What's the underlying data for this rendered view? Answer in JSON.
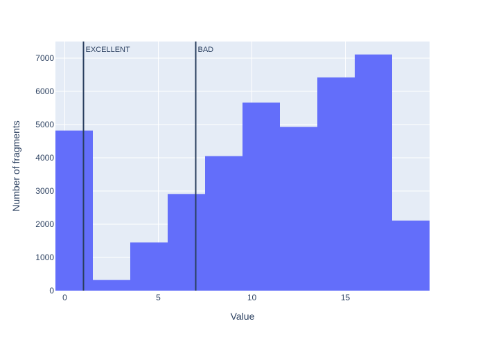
{
  "chart_data": {
    "type": "bar",
    "bins": [
      {
        "x0": -0.5,
        "x1": 1.5,
        "value": 4820
      },
      {
        "x0": 1.5,
        "x1": 3.5,
        "value": 320
      },
      {
        "x0": 3.5,
        "x1": 5.5,
        "value": 1450
      },
      {
        "x0": 5.5,
        "x1": 7.5,
        "value": 2910
      },
      {
        "x0": 7.5,
        "x1": 9.5,
        "value": 4050
      },
      {
        "x0": 9.5,
        "x1": 11.5,
        "value": 5660
      },
      {
        "x0": 11.5,
        "x1": 13.5,
        "value": 4930
      },
      {
        "x0": 13.5,
        "x1": 15.5,
        "value": 6420
      },
      {
        "x0": 15.5,
        "x1": 17.5,
        "value": 7110
      },
      {
        "x0": 17.5,
        "x1": 19.5,
        "value": 2110
      }
    ],
    "xlabel": "Value",
    "ylabel": "Number of fragments",
    "xlim": [
      -0.5,
      19.5
    ],
    "ylim": [
      0,
      7500
    ],
    "xticks": [
      0,
      5,
      10,
      15
    ],
    "yticks": [
      0,
      1000,
      2000,
      3000,
      4000,
      5000,
      6000,
      7000
    ],
    "grid": true,
    "bar_color": "#636efa",
    "plot_background": "#e5ecf6",
    "vlines": [
      {
        "x": 1,
        "label": "EXCELLENT",
        "color": "#2a3f5f"
      },
      {
        "x": 7,
        "label": "BAD",
        "color": "#2a3f5f"
      }
    ]
  }
}
